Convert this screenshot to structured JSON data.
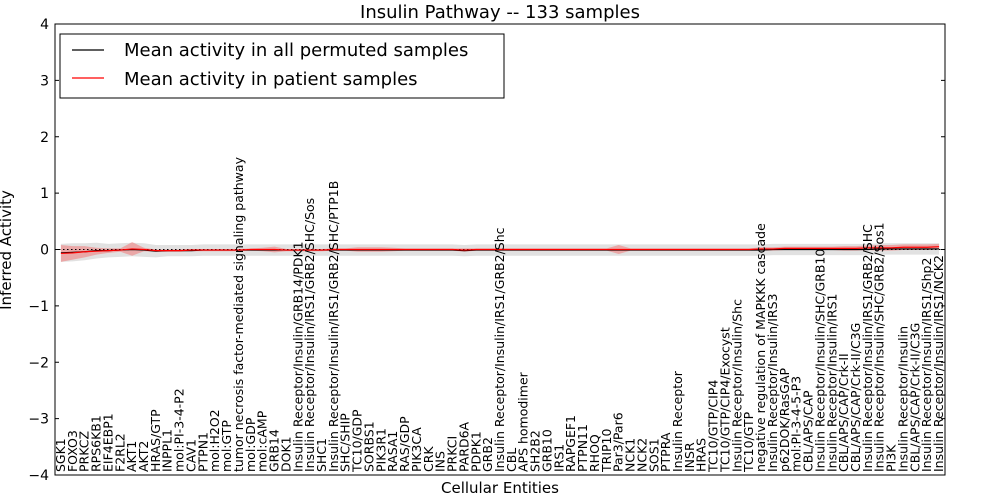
{
  "chart_data": {
    "type": "line",
    "title": "Insulin Pathway -- 133 samples",
    "xlabel": "Cellular Entities",
    "ylabel": "Inferred Activity",
    "ylim": [
      -4,
      4
    ],
    "yticks": [
      "4",
      "3",
      "2",
      "1",
      "0",
      "−1",
      "−2",
      "−3",
      "−4"
    ],
    "legend_position": "upper-left",
    "categories": [
      "SGK1",
      "FOXO3",
      "PRKCZ",
      "RPS6KB1",
      "EIF4EBP1",
      "F2RL2",
      "AKT1",
      "AKT2",
      "HRAS/GTP",
      "INPPL1",
      "mol:PI-3-4-P2",
      "CAV1",
      "PTPN1",
      "mol:H2O2",
      "mol:GTP",
      "tumor necrosis factor-mediated signaling pathway",
      "mol:GDP",
      "mol:cAMP",
      "GRB14",
      "DOK1",
      "Insulin Receptor/Insulin/GRB14/PDK1",
      "Insulin Receptor/Insulin/IRS1/GRB2/SHC/Sos",
      "SHC1",
      "Insulin Receptor/Insulin/IRS1/GRB2/SHC/PTP1B",
      "SHC/SHIP",
      "TC10/GDP",
      "SORBS1",
      "PIK3R1",
      "RASA1",
      "RAS/GDP",
      "PIK3CA",
      "CRK",
      "INS",
      "PRKCI",
      "PARD6A",
      "PDPK1",
      "GRB2",
      "Insulin Receptor/Insulin/IRS1/GRB2/Shc",
      "CBL",
      "APS homodimer",
      "SH2B2",
      "GRB10",
      "IRS1",
      "RAPGEF1",
      "PTPN11",
      "RHOQ",
      "TRIP10",
      "Par3/Par6",
      "NCK1",
      "NCK2",
      "SOS1",
      "PTPRA",
      "Insulin Receptor",
      "INSR",
      "HRAS",
      "TC10/GTP/CIP4",
      "TC10/GTP/CIP4/Exocyst",
      "Insulin Receptor/Insulin/Shc",
      "TC10/GTP",
      "negative regulation of MAPKKK cascade",
      "Insulin Receptor/Insulin/IRS3",
      "p62DOK/RasGAP",
      "mol:PI-3-4-5-P3",
      "CBL/APS/CAP",
      "Insulin Receptor/Insulin/SHC/GRB10",
      "Insulin Receptor/Insulin/IRS1",
      "CBL/APS/CAP/Crk-II",
      "CBL/APS/CAP/Crk-II/C3G",
      "Insulin Receptor/Insulin/IRS1/GRB2/SHC",
      "Insulin Receptor/Insulin/SHC/GRB2/Sos1",
      "PI3K",
      "Insulin Receptor/Insulin",
      "CBL/APS/CAP/Crk-II/C3G",
      "Insulin Receptor/Insulin/IRS1/Shp2",
      "Insulin Receptor/Insulin/IRS1/NCK2"
    ],
    "series": [
      {
        "name": "Mean activity in all permuted samples",
        "color": "#000000",
        "values": [
          -0.06,
          -0.05,
          -0.04,
          -0.02,
          -0.02,
          -0.01,
          0.0,
          -0.01,
          -0.03,
          -0.02,
          -0.02,
          -0.02,
          -0.01,
          -0.01,
          -0.01,
          -0.01,
          -0.01,
          -0.01,
          -0.01,
          -0.01,
          -0.01,
          -0.01,
          -0.01,
          -0.01,
          -0.01,
          -0.01,
          -0.01,
          -0.01,
          -0.01,
          -0.01,
          -0.01,
          -0.01,
          -0.01,
          -0.01,
          -0.02,
          -0.01,
          -0.01,
          -0.01,
          -0.01,
          -0.01,
          -0.01,
          -0.01,
          -0.01,
          -0.01,
          -0.01,
          -0.01,
          -0.01,
          -0.01,
          -0.01,
          -0.01,
          -0.01,
          -0.01,
          -0.01,
          -0.01,
          -0.01,
          -0.01,
          -0.01,
          -0.01,
          -0.01,
          -0.01,
          0.0,
          0.0,
          0.0,
          0.0,
          0.0,
          0.0,
          0.0,
          0.0,
          0.0,
          0.01,
          0.01,
          0.01,
          0.01,
          0.01,
          0.01
        ],
        "band": [
          0.16,
          0.16,
          0.15,
          0.14,
          0.12,
          0.12,
          0.12,
          0.12,
          0.11,
          0.1,
          0.1,
          0.1,
          0.1,
          0.1,
          0.1,
          0.1,
          0.1,
          0.1,
          0.1,
          0.1,
          0.1,
          0.1,
          0.1,
          0.1,
          0.1,
          0.1,
          0.1,
          0.1,
          0.1,
          0.1,
          0.1,
          0.1,
          0.1,
          0.1,
          0.1,
          0.1,
          0.1,
          0.1,
          0.1,
          0.1,
          0.1,
          0.1,
          0.1,
          0.1,
          0.1,
          0.1,
          0.1,
          0.1,
          0.1,
          0.1,
          0.1,
          0.1,
          0.1,
          0.1,
          0.1,
          0.1,
          0.1,
          0.1,
          0.1,
          0.1,
          0.1,
          0.1,
          0.1,
          0.1,
          0.1,
          0.1,
          0.1,
          0.1,
          0.1,
          0.1,
          0.1,
          0.1,
          0.1,
          0.1,
          0.1
        ],
        "band_color": "#c8c8c8"
      },
      {
        "name": "Mean activity in patient samples",
        "color": "#ff0000",
        "values": [
          -0.07,
          -0.06,
          -0.04,
          -0.03,
          -0.02,
          -0.01,
          0.01,
          0.0,
          -0.02,
          -0.02,
          -0.02,
          -0.01,
          -0.01,
          -0.01,
          -0.01,
          -0.01,
          0.0,
          0.0,
          0.0,
          -0.01,
          -0.01,
          -0.01,
          -0.01,
          0.0,
          0.0,
          0.0,
          0.0,
          0.0,
          0.0,
          0.0,
          0.0,
          0.0,
          0.0,
          0.0,
          -0.01,
          0.0,
          0.0,
          0.0,
          0.0,
          0.0,
          0.0,
          0.0,
          0.0,
          0.0,
          0.0,
          0.0,
          0.0,
          0.0,
          0.0,
          0.0,
          0.0,
          0.0,
          0.0,
          0.0,
          0.0,
          0.0,
          0.0,
          0.0,
          0.0,
          0.01,
          0.01,
          0.02,
          0.02,
          0.02,
          0.02,
          0.02,
          0.02,
          0.02,
          0.03,
          0.03,
          0.03,
          0.04,
          0.04,
          0.04,
          0.05
        ],
        "band": [
          0.15,
          0.12,
          0.1,
          0.06,
          0.04,
          0.03,
          0.12,
          0.03,
          0.02,
          0.02,
          0.02,
          0.02,
          0.02,
          0.02,
          0.02,
          0.02,
          0.02,
          0.03,
          0.05,
          0.02,
          0.02,
          0.02,
          0.02,
          0.02,
          0.02,
          0.04,
          0.04,
          0.04,
          0.03,
          0.02,
          0.02,
          0.02,
          0.02,
          0.02,
          0.03,
          0.02,
          0.02,
          0.02,
          0.02,
          0.02,
          0.02,
          0.02,
          0.02,
          0.02,
          0.02,
          0.02,
          0.02,
          0.08,
          0.02,
          0.02,
          0.02,
          0.02,
          0.02,
          0.02,
          0.02,
          0.02,
          0.02,
          0.02,
          0.02,
          0.03,
          0.03,
          0.03,
          0.03,
          0.03,
          0.03,
          0.03,
          0.04,
          0.04,
          0.04,
          0.05,
          0.05,
          0.05,
          0.05,
          0.05,
          0.05
        ],
        "band_color": "#f08080"
      }
    ]
  }
}
